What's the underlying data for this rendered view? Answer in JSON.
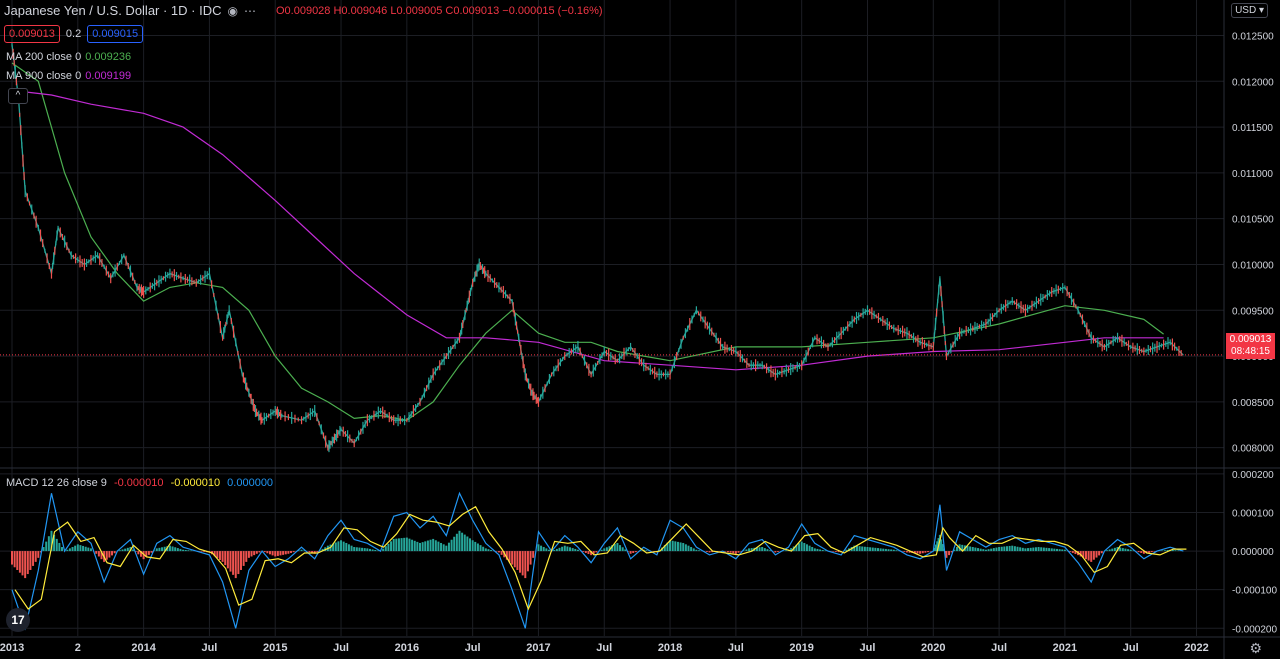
{
  "header": {
    "symbol": "Japanese Yen / U.S. Dollar · 1D · IDC",
    "ohlc": "O0.009028 H0.009046 L0.009005 C0.009013 −0.000015 (−0.16%)",
    "bid": "0.009013",
    "spread": "0.2",
    "ask": "0.009015",
    "collapse": "^",
    "eye_icon": "eye-icon",
    "more_icon": "more-icon"
  },
  "currency": "USD",
  "price_tag": {
    "price": "0.009013",
    "countdown": "08:48:15",
    "color": "#f23645"
  },
  "indicators": {
    "ma200": {
      "label": "MA 200 close 0",
      "value": "0.009236",
      "color": "#4caf50"
    },
    "ma900": {
      "label": "MA 900 close 0",
      "value": "0.009199",
      "color": "#c12bd4"
    },
    "macd": {
      "label": "MACD 12 26 close 9",
      "hist": "-0.000010",
      "signal": "-0.000010",
      "macd": "0.000000",
      "hist_color": "#f23645",
      "signal_color": "#ffeb3b",
      "macd_color": "#2196f3"
    }
  },
  "colors": {
    "up": "#26a69a",
    "down": "#ef5350",
    "grid": "#1c1e24",
    "text": "#d1d4dc"
  },
  "chart_data": [
    {
      "type": "line",
      "title": "Japanese Yen / U.S. Dollar",
      "ylim": [
        0.0078,
        0.0128
      ],
      "y_ticks": [
        "0.012500",
        "0.012000",
        "0.011500",
        "0.011000",
        "0.010500",
        "0.010000",
        "0.009500",
        "0.009000",
        "0.008500",
        "0.008000"
      ],
      "y_tick_values": [
        0.0125,
        0.012,
        0.0115,
        0.011,
        0.0105,
        0.01,
        0.0095,
        0.009,
        0.0085,
        0.008
      ],
      "x_ticks": [
        "2013",
        "2",
        "2014",
        "Jul",
        "2015",
        "Jul",
        "2016",
        "Jul",
        "2017",
        "Jul",
        "2018",
        "Jul",
        "2019",
        "Jul",
        "2020",
        "Jul",
        "2021",
        "Jul",
        "2022"
      ],
      "x_tick_values": [
        2013.0,
        2013.5,
        2014.0,
        2014.5,
        2015.0,
        2015.5,
        2016.0,
        2016.5,
        2017.0,
        2017.5,
        2018.0,
        2018.5,
        2019.0,
        2019.5,
        2020.0,
        2020.5,
        2021.0,
        2021.5,
        2022.0
      ],
      "xlim": [
        2013.0,
        2022.3
      ],
      "series": [
        {
          "name": "price",
          "color": "#26a69a",
          "x": [
            2013.0,
            2013.05,
            2013.1,
            2013.2,
            2013.3,
            2013.35,
            2013.45,
            2013.55,
            2013.65,
            2013.75,
            2013.85,
            2013.95,
            2014.0,
            2014.1,
            2014.2,
            2014.3,
            2014.4,
            2014.5,
            2014.6,
            2014.65,
            2014.75,
            2014.8,
            2014.85,
            2014.9,
            2015.0,
            2015.05,
            2015.2,
            2015.3,
            2015.4,
            2015.45,
            2015.5,
            2015.6,
            2015.7,
            2015.8,
            2015.9,
            2016.0,
            2016.1,
            2016.2,
            2016.3,
            2016.4,
            2016.45,
            2016.5,
            2016.55,
            2016.6,
            2016.7,
            2016.8,
            2016.85,
            2016.9,
            2016.95,
            2017.0,
            2017.1,
            2017.2,
            2017.3,
            2017.4,
            2017.5,
            2017.6,
            2017.7,
            2017.8,
            2017.9,
            2018.0,
            2018.1,
            2018.2,
            2018.3,
            2018.4,
            2018.5,
            2018.6,
            2018.7,
            2018.8,
            2018.9,
            2019.0,
            2019.1,
            2019.2,
            2019.3,
            2019.4,
            2019.5,
            2019.6,
            2019.7,
            2019.8,
            2019.9,
            2020.0,
            2020.05,
            2020.1,
            2020.2,
            2020.3,
            2020.4,
            2020.5,
            2020.6,
            2020.7,
            2020.8,
            2020.9,
            2021.0,
            2021.1,
            2021.2,
            2021.3,
            2021.4,
            2021.5,
            2021.6,
            2021.7,
            2021.8,
            2021.9
          ],
          "y": [
            0.0124,
            0.0118,
            0.0108,
            0.0104,
            0.0099,
            0.0104,
            0.0101,
            0.01,
            0.0101,
            0.00985,
            0.0101,
            0.00975,
            0.0097,
            0.0098,
            0.0099,
            0.00985,
            0.0098,
            0.0099,
            0.0092,
            0.0095,
            0.0088,
            0.0086,
            0.0084,
            0.0083,
            0.0084,
            0.00835,
            0.0083,
            0.0084,
            0.008,
            0.0081,
            0.0082,
            0.00805,
            0.0083,
            0.0084,
            0.0083,
            0.0083,
            0.0085,
            0.0088,
            0.009,
            0.0092,
            0.0095,
            0.0098,
            0.01,
            0.0099,
            0.00975,
            0.0096,
            0.0092,
            0.0088,
            0.0086,
            0.0085,
            0.0088,
            0.009,
            0.0091,
            0.0088,
            0.00905,
            0.00895,
            0.0091,
            0.0089,
            0.0088,
            0.0088,
            0.0092,
            0.0095,
            0.0093,
            0.0091,
            0.00905,
            0.0089,
            0.0089,
            0.0088,
            0.00885,
            0.0089,
            0.0092,
            0.0091,
            0.00925,
            0.0094,
            0.0095,
            0.0094,
            0.0093,
            0.00925,
            0.00915,
            0.0091,
            0.00985,
            0.009,
            0.00925,
            0.0093,
            0.00935,
            0.0095,
            0.0096,
            0.0095,
            0.0096,
            0.0097,
            0.00975,
            0.0095,
            0.0092,
            0.0091,
            0.0092,
            0.0091,
            0.00905,
            0.0091,
            0.00915,
            0.00901
          ]
        },
        {
          "name": "MA 200 close 0",
          "color": "#4caf50",
          "x": [
            2013.0,
            2013.2,
            2013.4,
            2013.6,
            2013.8,
            2014.0,
            2014.2,
            2014.4,
            2014.6,
            2014.8,
            2015.0,
            2015.2,
            2015.4,
            2015.6,
            2015.8,
            2016.0,
            2016.2,
            2016.4,
            2016.6,
            2016.8,
            2017.0,
            2017.2,
            2017.4,
            2017.6,
            2017.8,
            2018.0,
            2018.5,
            2019.0,
            2019.5,
            2020.0,
            2020.5,
            2021.0,
            2021.3,
            2021.6,
            2021.75
          ],
          "y": [
            0.0122,
            0.012,
            0.011,
            0.0103,
            0.0099,
            0.0096,
            0.00975,
            0.0098,
            0.00975,
            0.0095,
            0.009,
            0.00865,
            0.0085,
            0.00832,
            0.00835,
            0.0083,
            0.0085,
            0.0089,
            0.00925,
            0.0095,
            0.00925,
            0.00915,
            0.00915,
            0.00905,
            0.009,
            0.00895,
            0.0091,
            0.0091,
            0.00915,
            0.0092,
            0.00935,
            0.00955,
            0.0095,
            0.0094,
            0.00924
          ]
        },
        {
          "name": "MA 900 close 0",
          "color": "#c12bd4",
          "x": [
            2013.0,
            2013.3,
            2013.6,
            2014.0,
            2014.3,
            2014.6,
            2015.0,
            2015.3,
            2015.6,
            2016.0,
            2016.3,
            2016.6,
            2017.0,
            2017.5,
            2018.0,
            2018.5,
            2019.0,
            2019.5,
            2020.0,
            2020.5,
            2021.0,
            2021.3,
            2021.75
          ],
          "y": [
            0.0119,
            0.01185,
            0.01175,
            0.01165,
            0.0115,
            0.0112,
            0.0107,
            0.0103,
            0.0099,
            0.00945,
            0.0092,
            0.0092,
            0.00915,
            0.00895,
            0.0089,
            0.00885,
            0.0089,
            0.009,
            0.00905,
            0.00907,
            0.00915,
            0.0092,
            0.0092
          ]
        }
      ]
    },
    {
      "type": "line",
      "title": "MACD 12 26 close 9",
      "ylim": [
        -0.00022,
        0.00021
      ],
      "y_ticks": [
        "0.000200",
        "0.000100",
        "0.000000",
        "-0.000100",
        "-0.000200"
      ],
      "y_tick_values": [
        0.0002,
        0.0001,
        0.0,
        -0.0001,
        -0.0002
      ],
      "xlim": [
        2013.0,
        2022.3
      ],
      "series": [
        {
          "name": "MACD",
          "color": "#2196f3",
          "x": [
            2013.0,
            2013.1,
            2013.2,
            2013.3,
            2013.4,
            2013.5,
            2013.6,
            2013.7,
            2013.8,
            2013.9,
            2014.0,
            2014.1,
            2014.2,
            2014.3,
            2014.4,
            2014.5,
            2014.6,
            2014.7,
            2014.8,
            2014.9,
            2015.0,
            2015.1,
            2015.2,
            2015.3,
            2015.4,
            2015.5,
            2015.6,
            2015.7,
            2015.8,
            2015.9,
            2016.0,
            2016.1,
            2016.2,
            2016.3,
            2016.4,
            2016.5,
            2016.6,
            2016.7,
            2016.8,
            2016.9,
            2017.0,
            2017.1,
            2017.2,
            2017.3,
            2017.4,
            2017.5,
            2017.6,
            2017.7,
            2017.8,
            2017.9,
            2018.0,
            2018.1,
            2018.2,
            2018.3,
            2018.4,
            2018.5,
            2018.6,
            2018.7,
            2018.8,
            2018.9,
            2019.0,
            2019.1,
            2019.2,
            2019.3,
            2019.4,
            2019.5,
            2019.6,
            2019.7,
            2019.8,
            2019.9,
            2020.0,
            2020.05,
            2020.1,
            2020.2,
            2020.3,
            2020.4,
            2020.5,
            2020.6,
            2020.7,
            2020.8,
            2020.9,
            2021.0,
            2021.1,
            2021.2,
            2021.3,
            2021.4,
            2021.5,
            2021.6,
            2021.7,
            2021.8,
            2021.9
          ],
          "y": [
            -0.0001,
            -0.0002,
            -5e-05,
            0.00015,
            0.0,
            5e-05,
            2e-05,
            -8e-05,
            0.0,
            3e-05,
            -6e-05,
            2e-05,
            4e-05,
            1e-05,
            0.0,
            -1e-05,
            -8e-05,
            -0.0002,
            -5e-05,
            0.0,
            -4e-05,
            -2e-05,
            1e-05,
            -2e-05,
            4e-05,
            8e-05,
            3e-05,
            2e-05,
            0.0,
            9e-05,
            0.0001,
            6e-05,
            9e-05,
            4e-05,
            0.00015,
            8e-05,
            2e-05,
            -1e-05,
            -0.0001,
            -0.0002,
            5e-05,
            0.0,
            4e-05,
            1e-05,
            -3e-05,
            2e-05,
            6e-05,
            -2e-05,
            1e-05,
            -1e-05,
            8e-05,
            6e-05,
            1e-05,
            -1e-05,
            0.0,
            -2e-05,
            2e-05,
            3e-05,
            -1e-05,
            1e-05,
            7e-05,
            2e-05,
            0.0,
            -1e-05,
            4e-05,
            3e-05,
            2e-05,
            1e-05,
            -1e-05,
            -2e-05,
            0.0,
            0.00012,
            -5e-05,
            5e-05,
            3e-05,
            1e-05,
            3e-05,
            4e-05,
            2e-05,
            3e-05,
            2e-05,
            1e-05,
            -3e-05,
            -8e-05,
            0.0,
            3e-05,
            1e-05,
            -2e-05,
            0.0,
            1e-05,
            0.0
          ]
        }
      ]
    }
  ]
}
